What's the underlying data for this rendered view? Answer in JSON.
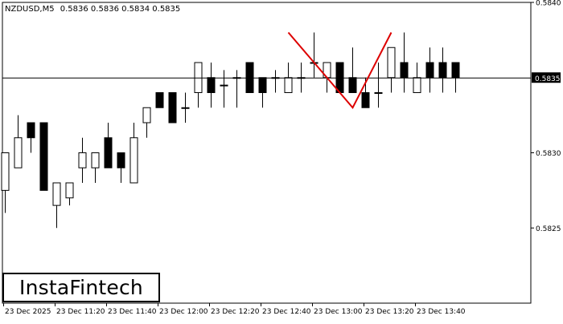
{
  "header": {
    "symbol": "NZDUSD,M5",
    "values": "0.5836 0.5836 0.5834 0.5835"
  },
  "logo": {
    "text": "InstaFintech"
  },
  "colors": {
    "background": "#ffffff",
    "candle_up_fill": "#ffffff",
    "candle_down_fill": "#000000",
    "pattern_line": "#dd0000",
    "price_line": "#000000",
    "axis": "#000000"
  },
  "chart_data": {
    "type": "candlestick",
    "title": "",
    "current_price": 0.5835,
    "current_price_label": "0.5835",
    "ylim": [
      0.582,
      0.584
    ],
    "y_ticks": [
      {
        "value": 0.584,
        "label": "0.5840"
      },
      {
        "value": 0.583,
        "label": "0.5830"
      },
      {
        "value": 0.5825,
        "label": "0.5825"
      }
    ],
    "x_ticks": [
      {
        "index": 0,
        "label": "23 Dec 2025"
      },
      {
        "index": 4,
        "label": "23 Dec 11:20"
      },
      {
        "index": 8,
        "label": "23 Dec 11:40"
      },
      {
        "index": 12,
        "label": "23 Dec 12:00"
      },
      {
        "index": 16,
        "label": "23 Dec 12:20"
      },
      {
        "index": 20,
        "label": "23 Dec 12:40"
      },
      {
        "index": 24,
        "label": "23 Dec 13:00"
      },
      {
        "index": 28,
        "label": "23 Dec 13:20"
      },
      {
        "index": 32,
        "label": "23 Dec 13:40"
      }
    ],
    "candles": [
      {
        "o": 0.58275,
        "h": 0.583,
        "l": 0.5826,
        "c": 0.583
      },
      {
        "o": 0.5829,
        "h": 0.58325,
        "l": 0.5829,
        "c": 0.5831
      },
      {
        "o": 0.5832,
        "h": 0.5832,
        "l": 0.583,
        "c": 0.5831
      },
      {
        "o": 0.5832,
        "h": 0.5832,
        "l": 0.58275,
        "c": 0.58275
      },
      {
        "o": 0.58265,
        "h": 0.5828,
        "l": 0.5825,
        "c": 0.5828
      },
      {
        "o": 0.5827,
        "h": 0.5828,
        "l": 0.58265,
        "c": 0.5828
      },
      {
        "o": 0.5829,
        "h": 0.5831,
        "l": 0.5828,
        "c": 0.583
      },
      {
        "o": 0.5829,
        "h": 0.583,
        "l": 0.5828,
        "c": 0.583
      },
      {
        "o": 0.5831,
        "h": 0.5832,
        "l": 0.5829,
        "c": 0.5829
      },
      {
        "o": 0.583,
        "h": 0.583,
        "l": 0.5828,
        "c": 0.5829
      },
      {
        "o": 0.5828,
        "h": 0.5832,
        "l": 0.5828,
        "c": 0.5831
      },
      {
        "o": 0.5832,
        "h": 0.5833,
        "l": 0.5831,
        "c": 0.5833
      },
      {
        "o": 0.5834,
        "h": 0.5834,
        "l": 0.5833,
        "c": 0.5833
      },
      {
        "o": 0.5834,
        "h": 0.5834,
        "l": 0.5832,
        "c": 0.5832
      },
      {
        "o": 0.5833,
        "h": 0.5834,
        "l": 0.5832,
        "c": 0.5833
      },
      {
        "o": 0.5834,
        "h": 0.5836,
        "l": 0.5833,
        "c": 0.5836
      },
      {
        "o": 0.5835,
        "h": 0.5836,
        "l": 0.5833,
        "c": 0.5834
      },
      {
        "o": 0.58345,
        "h": 0.58355,
        "l": 0.5833,
        "c": 0.58345
      },
      {
        "o": 0.5835,
        "h": 0.58355,
        "l": 0.5833,
        "c": 0.5835
      },
      {
        "o": 0.5836,
        "h": 0.5836,
        "l": 0.5834,
        "c": 0.5834
      },
      {
        "o": 0.5835,
        "h": 0.5835,
        "l": 0.5833,
        "c": 0.5834
      },
      {
        "o": 0.5835,
        "h": 0.58355,
        "l": 0.5834,
        "c": 0.5835
      },
      {
        "o": 0.5834,
        "h": 0.5836,
        "l": 0.5834,
        "c": 0.5835
      },
      {
        "o": 0.5835,
        "h": 0.5836,
        "l": 0.5834,
        "c": 0.5835
      },
      {
        "o": 0.5836,
        "h": 0.5838,
        "l": 0.5835,
        "c": 0.5836
      },
      {
        "o": 0.5835,
        "h": 0.5836,
        "l": 0.5834,
        "c": 0.5836
      },
      {
        "o": 0.5836,
        "h": 0.5836,
        "l": 0.5834,
        "c": 0.5834
      },
      {
        "o": 0.5835,
        "h": 0.5837,
        "l": 0.5834,
        "c": 0.5834
      },
      {
        "o": 0.5834,
        "h": 0.5835,
        "l": 0.5833,
        "c": 0.5833
      },
      {
        "o": 0.5834,
        "h": 0.5836,
        "l": 0.5833,
        "c": 0.5834
      },
      {
        "o": 0.5835,
        "h": 0.5837,
        "l": 0.5834,
        "c": 0.5837
      },
      {
        "o": 0.5836,
        "h": 0.5838,
        "l": 0.5834,
        "c": 0.5835
      },
      {
        "o": 0.5834,
        "h": 0.5836,
        "l": 0.5834,
        "c": 0.5835
      },
      {
        "o": 0.5836,
        "h": 0.5837,
        "l": 0.5834,
        "c": 0.5835
      },
      {
        "o": 0.5836,
        "h": 0.5837,
        "l": 0.5834,
        "c": 0.5835
      },
      {
        "o": 0.5836,
        "h": 0.5836,
        "l": 0.5834,
        "c": 0.5835
      }
    ],
    "pattern": {
      "name": "Double Top",
      "points": [
        {
          "index": 22,
          "price": 0.5838
        },
        {
          "index": 27,
          "price": 0.5833
        },
        {
          "index": 30,
          "price": 0.5838
        }
      ]
    }
  }
}
